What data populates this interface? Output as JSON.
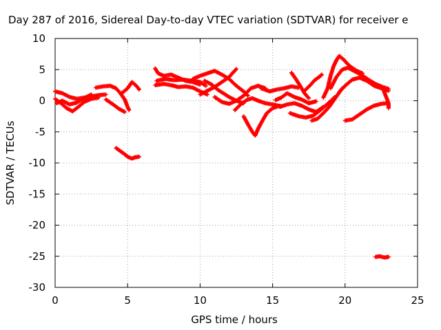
{
  "chart_data": {
    "type": "scatter",
    "title": "Day 287 of 2016, Sidereal Day-to-day VTEC variation (SDTVAR) for receiver e",
    "xlabel": "GPS time / hours",
    "ylabel": "SDTVAR / TECUs",
    "xlim": [
      0,
      25
    ],
    "ylim": [
      -30,
      10
    ],
    "xticks": [
      0,
      5,
      10,
      15,
      20,
      25
    ],
    "yticks": [
      10,
      5,
      0,
      -5,
      -10,
      -15,
      -20,
      -25,
      -30
    ],
    "grid": true,
    "marker": "plus",
    "series_color": "#ff0000",
    "series": [
      {
        "name": "arc-1",
        "points": [
          [
            0.0,
            1.5
          ],
          [
            0.5,
            1.2
          ],
          [
            1.0,
            0.6
          ],
          [
            1.5,
            0.3
          ],
          [
            2.0,
            0.5
          ],
          [
            2.5,
            0.7
          ],
          [
            3.0,
            0.9
          ],
          [
            3.5,
            1.0
          ]
        ]
      },
      {
        "name": "arc-2",
        "points": [
          [
            0.0,
            0.3
          ],
          [
            0.4,
            -0.4
          ],
          [
            0.8,
            -1.2
          ],
          [
            1.2,
            -1.7
          ],
          [
            1.6,
            -1.0
          ],
          [
            2.0,
            -0.2
          ],
          [
            2.5,
            0.3
          ],
          [
            3.0,
            0.5
          ]
        ]
      },
      {
        "name": "arc-3",
        "points": [
          [
            0.1,
            -0.4
          ],
          [
            0.5,
            0.0
          ],
          [
            1.0,
            -0.6
          ],
          [
            1.5,
            -0.3
          ],
          [
            2.0,
            0.4
          ],
          [
            2.5,
            1.0
          ]
        ]
      },
      {
        "name": "arc-4",
        "points": [
          [
            2.8,
            2.1
          ],
          [
            3.3,
            2.3
          ],
          [
            3.8,
            2.4
          ],
          [
            4.2,
            2.0
          ],
          [
            4.5,
            1.2
          ],
          [
            4.8,
            0.2
          ],
          [
            5.0,
            -1.0
          ],
          [
            5.1,
            -1.5
          ]
        ]
      },
      {
        "name": "arc-5",
        "points": [
          [
            3.5,
            0.2
          ],
          [
            4.0,
            -0.6
          ],
          [
            4.4,
            -1.3
          ],
          [
            4.8,
            -1.8
          ]
        ]
      },
      {
        "name": "arc-6",
        "points": [
          [
            4.6,
            1.2
          ],
          [
            5.0,
            2.0
          ],
          [
            5.3,
            3.0
          ],
          [
            5.6,
            2.4
          ],
          [
            5.8,
            1.8
          ]
        ]
      },
      {
        "name": "arc-7",
        "points": [
          [
            4.2,
            -7.6
          ],
          [
            4.5,
            -8.1
          ],
          [
            4.8,
            -8.6
          ],
          [
            5.0,
            -9.0
          ],
          [
            5.3,
            -9.3
          ],
          [
            5.5,
            -9.1
          ],
          [
            5.8,
            -9.0
          ]
        ]
      },
      {
        "name": "arc-8",
        "points": [
          [
            6.9,
            5.2
          ],
          [
            7.1,
            4.4
          ],
          [
            7.5,
            4.0
          ],
          [
            8.0,
            4.2
          ],
          [
            8.5,
            3.7
          ],
          [
            9.0,
            3.2
          ],
          [
            9.5,
            3.0
          ],
          [
            10.0,
            2.6
          ]
        ]
      },
      {
        "name": "arc-9",
        "points": [
          [
            6.9,
            2.5
          ],
          [
            7.5,
            2.7
          ],
          [
            8.0,
            2.5
          ],
          [
            8.5,
            2.2
          ],
          [
            9.0,
            2.3
          ],
          [
            9.5,
            2.1
          ],
          [
            10.0,
            1.5
          ],
          [
            10.5,
            1.0
          ]
        ]
      },
      {
        "name": "arc-10",
        "points": [
          [
            7.0,
            3.2
          ],
          [
            7.6,
            3.5
          ],
          [
            8.2,
            3.3
          ],
          [
            8.8,
            3.4
          ],
          [
            9.4,
            3.2
          ],
          [
            10.0,
            3.0
          ],
          [
            10.4,
            2.4
          ]
        ]
      },
      {
        "name": "arc-11",
        "points": [
          [
            9.5,
            3.5
          ],
          [
            10.0,
            4.0
          ],
          [
            10.5,
            4.4
          ],
          [
            11.0,
            4.8
          ],
          [
            11.5,
            4.2
          ],
          [
            12.0,
            3.5
          ],
          [
            12.5,
            2.4
          ],
          [
            13.0,
            1.5
          ],
          [
            13.3,
            0.8
          ]
        ]
      },
      {
        "name": "arc-12",
        "points": [
          [
            10.0,
            1.0
          ],
          [
            10.5,
            1.6
          ],
          [
            11.0,
            2.2
          ],
          [
            11.5,
            3.0
          ],
          [
            12.0,
            3.8
          ],
          [
            12.3,
            4.6
          ],
          [
            12.5,
            5.1
          ]
        ]
      },
      {
        "name": "arc-13",
        "points": [
          [
            10.3,
            3.2
          ],
          [
            10.8,
            2.6
          ],
          [
            11.2,
            1.8
          ],
          [
            11.6,
            1.2
          ],
          [
            12.0,
            0.6
          ],
          [
            12.5,
            0.0
          ],
          [
            13.0,
            -0.4
          ]
        ]
      },
      {
        "name": "arc-14",
        "points": [
          [
            11.0,
            0.6
          ],
          [
            11.5,
            -0.2
          ],
          [
            12.0,
            -0.5
          ],
          [
            12.5,
            0.0
          ],
          [
            13.0,
            0.8
          ],
          [
            13.5,
            2.0
          ],
          [
            14.0,
            2.4
          ],
          [
            14.5,
            2.0
          ]
        ]
      },
      {
        "name": "arc-15",
        "points": [
          [
            13.0,
            -2.5
          ],
          [
            13.3,
            -3.8
          ],
          [
            13.6,
            -5.0
          ],
          [
            13.8,
            -5.6
          ],
          [
            14.0,
            -4.5
          ],
          [
            14.3,
            -3.2
          ],
          [
            14.6,
            -2.0
          ],
          [
            15.0,
            -1.2
          ],
          [
            15.5,
            -0.8
          ]
        ]
      },
      {
        "name": "arc-16",
        "points": [
          [
            12.4,
            -1.5
          ],
          [
            12.8,
            -0.6
          ],
          [
            13.2,
            0.1
          ],
          [
            13.6,
            0.4
          ],
          [
            14.0,
            0.0
          ],
          [
            14.5,
            -0.4
          ],
          [
            15.0,
            -0.6
          ],
          [
            15.6,
            -0.9
          ]
        ]
      },
      {
        "name": "arc-17",
        "points": [
          [
            14.2,
            2.0
          ],
          [
            14.8,
            1.5
          ],
          [
            15.3,
            1.8
          ],
          [
            15.8,
            2.0
          ],
          [
            16.3,
            2.3
          ],
          [
            16.8,
            2.1
          ]
        ]
      },
      {
        "name": "arc-18",
        "points": [
          [
            15.2,
            0.1
          ],
          [
            15.6,
            0.5
          ],
          [
            16.0,
            1.2
          ],
          [
            16.5,
            0.6
          ],
          [
            17.0,
            0.2
          ],
          [
            17.5,
            -0.4
          ],
          [
            18.0,
            -0.1
          ]
        ]
      },
      {
        "name": "arc-19",
        "points": [
          [
            15.5,
            -1.0
          ],
          [
            16.0,
            -0.6
          ],
          [
            16.5,
            -0.4
          ],
          [
            17.0,
            -0.8
          ],
          [
            17.5,
            -1.4
          ],
          [
            18.0,
            -1.8
          ],
          [
            18.5,
            -1.0
          ]
        ]
      },
      {
        "name": "arc-20",
        "points": [
          [
            16.2,
            -2.0
          ],
          [
            16.8,
            -2.5
          ],
          [
            17.3,
            -2.7
          ],
          [
            17.8,
            -2.4
          ],
          [
            18.3,
            -1.5
          ],
          [
            18.8,
            -0.5
          ],
          [
            19.3,
            0.6
          ]
        ]
      },
      {
        "name": "arc-21",
        "points": [
          [
            16.3,
            4.5
          ],
          [
            16.6,
            3.5
          ],
          [
            16.9,
            2.4
          ],
          [
            17.2,
            1.2
          ],
          [
            17.5,
            0.4
          ]
        ]
      },
      {
        "name": "arc-22",
        "points": [
          [
            17.2,
            1.6
          ],
          [
            17.6,
            2.5
          ],
          [
            17.9,
            3.3
          ],
          [
            18.2,
            3.8
          ],
          [
            18.4,
            4.2
          ]
        ]
      },
      {
        "name": "arc-23",
        "points": [
          [
            17.7,
            -3.2
          ],
          [
            18.1,
            -2.9
          ],
          [
            18.5,
            -2.0
          ],
          [
            18.9,
            -1.0
          ],
          [
            19.2,
            0.0
          ],
          [
            19.5,
            1.0
          ],
          [
            19.8,
            2.0
          ]
        ]
      },
      {
        "name": "arc-24",
        "points": [
          [
            18.5,
            0.5
          ],
          [
            18.8,
            2.0
          ],
          [
            19.0,
            4.0
          ],
          [
            19.2,
            5.5
          ],
          [
            19.4,
            6.5
          ],
          [
            19.6,
            7.2
          ],
          [
            19.9,
            6.6
          ],
          [
            20.3,
            5.6
          ],
          [
            20.8,
            4.8
          ],
          [
            21.2,
            4.4
          ]
        ]
      },
      {
        "name": "arc-25",
        "points": [
          [
            19.0,
            2.0
          ],
          [
            19.4,
            3.8
          ],
          [
            19.8,
            5.0
          ],
          [
            20.2,
            5.3
          ],
          [
            20.6,
            4.8
          ],
          [
            21.1,
            4.2
          ],
          [
            21.6,
            3.4
          ],
          [
            22.1,
            2.7
          ],
          [
            22.6,
            2.2
          ],
          [
            23.0,
            1.9
          ]
        ]
      },
      {
        "name": "arc-26",
        "points": [
          [
            19.6,
            1.4
          ],
          [
            20.0,
            2.4
          ],
          [
            20.5,
            3.4
          ],
          [
            21.0,
            3.7
          ],
          [
            21.5,
            3.2
          ],
          [
            22.0,
            2.4
          ],
          [
            22.5,
            2.0
          ],
          [
            23.0,
            1.6
          ]
        ]
      },
      {
        "name": "arc-27",
        "points": [
          [
            20.0,
            -3.2
          ],
          [
            20.5,
            -3.0
          ],
          [
            21.0,
            -2.2
          ],
          [
            21.5,
            -1.4
          ],
          [
            22.0,
            -0.8
          ],
          [
            22.5,
            -0.5
          ],
          [
            22.9,
            -0.4
          ]
        ]
      },
      {
        "name": "arc-28",
        "points": [
          [
            22.6,
            2.0
          ],
          [
            22.8,
            0.8
          ],
          [
            23.0,
            -0.4
          ],
          [
            23.0,
            -1.2
          ]
        ]
      },
      {
        "name": "arc-29",
        "points": [
          [
            22.1,
            -25.1
          ],
          [
            22.4,
            -25.0
          ],
          [
            22.7,
            -25.2
          ],
          [
            23.0,
            -25.1
          ]
        ]
      }
    ]
  }
}
